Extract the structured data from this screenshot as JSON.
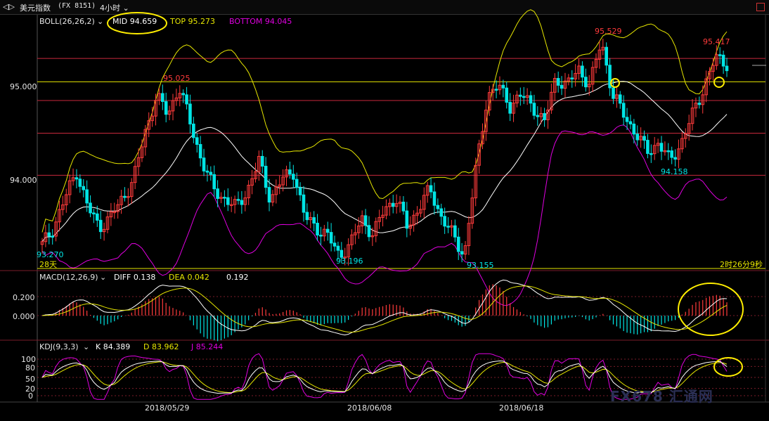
{
  "header": {
    "nav_label": "◁▷",
    "title": "美元指数",
    "code": "(FX 8151)",
    "period": "4小时"
  },
  "boll_legend": {
    "name": "BOLL(26,26,2)",
    "mid": "MID 94.659",
    "top": "TOP 95.273",
    "bottom": "BOTTOM 94.045"
  },
  "macd_legend": {
    "name": "MACD(12,26,9)",
    "diff": "DIFF 0.138",
    "dea": "DEA 0.042",
    "macd": "0.192"
  },
  "kdj_legend": {
    "name": "KDJ(9,3,3)",
    "k": "K 84.389",
    "d": "D 83.962",
    "j": "J 85.244"
  },
  "price_axis": {
    "labels": [
      "95.000",
      "94.000"
    ],
    "values": [
      95.0,
      94.0
    ]
  },
  "macd_axis": {
    "labels": [
      "0.200",
      "0.000"
    ],
    "values": [
      0.2,
      0.0
    ]
  },
  "kdj_axis": {
    "labels": [
      "100",
      "80",
      "50",
      "20",
      "0"
    ],
    "values": [
      100,
      80,
      50,
      20,
      0
    ]
  },
  "date_labels": [
    "2018/05/29",
    "2018/06/08",
    "2018/06/18"
  ],
  "price_labels": {
    "low_start": "93.270",
    "high_1": "95.025",
    "low_2": "93.196",
    "low_3": "93.155",
    "high_2": "95.529",
    "low_4": "94.158",
    "high_3": "95.417"
  },
  "footer": {
    "left": "28天",
    "right": "2时26分9秒"
  },
  "watermark": "FX678 汇通网",
  "colors": {
    "up": "#ff3b3b",
    "down": "#00e5e5",
    "mid": "#ffffff",
    "boll_top": "#e6e600",
    "boll_bot": "#e000e0",
    "hline_red": "#c8283c",
    "hline_yel": "#e6e600",
    "annot": "#ffee00",
    "accent_text": "#e6e6e6",
    "bg": "#000000"
  },
  "chart_data": {
    "type": "candlestick",
    "indicators": [
      "BOLL(26,26,2)",
      "MACD(12,26,9)",
      "KDJ(9,3,3)"
    ],
    "price_range": [
      93.1,
      95.6
    ],
    "key_points": [
      {
        "label": "93.270",
        "value": 93.27
      },
      {
        "label": "95.025",
        "value": 95.025
      },
      {
        "label": "93.196",
        "value": 93.196
      },
      {
        "label": "93.155",
        "value": 93.155
      },
      {
        "label": "95.529",
        "value": 95.529
      },
      {
        "label": "94.158",
        "value": 94.158
      },
      {
        "label": "95.417",
        "value": 95.417
      }
    ],
    "close_path": [
      93.3,
      93.5,
      93.8,
      94.1,
      93.7,
      93.5,
      93.6,
      93.8,
      94.0,
      94.5,
      94.9,
      94.7,
      95.0,
      94.6,
      94.2,
      93.9,
      93.8,
      93.7,
      93.9,
      94.2,
      93.8,
      94.0,
      94.1,
      93.6,
      93.5,
      93.4,
      93.2,
      93.3,
      93.6,
      93.4,
      93.7,
      93.8,
      93.5,
      93.7,
      93.9,
      93.6,
      93.4,
      93.2,
      94.1,
      94.9,
      95.0,
      94.8,
      94.9,
      94.8,
      94.6,
      95.1,
      95.0,
      95.2,
      95.0,
      95.5,
      94.9,
      94.7,
      94.5,
      94.3,
      94.4,
      94.2,
      94.4,
      94.7,
      95.0,
      95.3,
      95.25
    ],
    "horizontal_levels": [
      95.3,
      95.05,
      94.85,
      94.5,
      94.05
    ]
  }
}
